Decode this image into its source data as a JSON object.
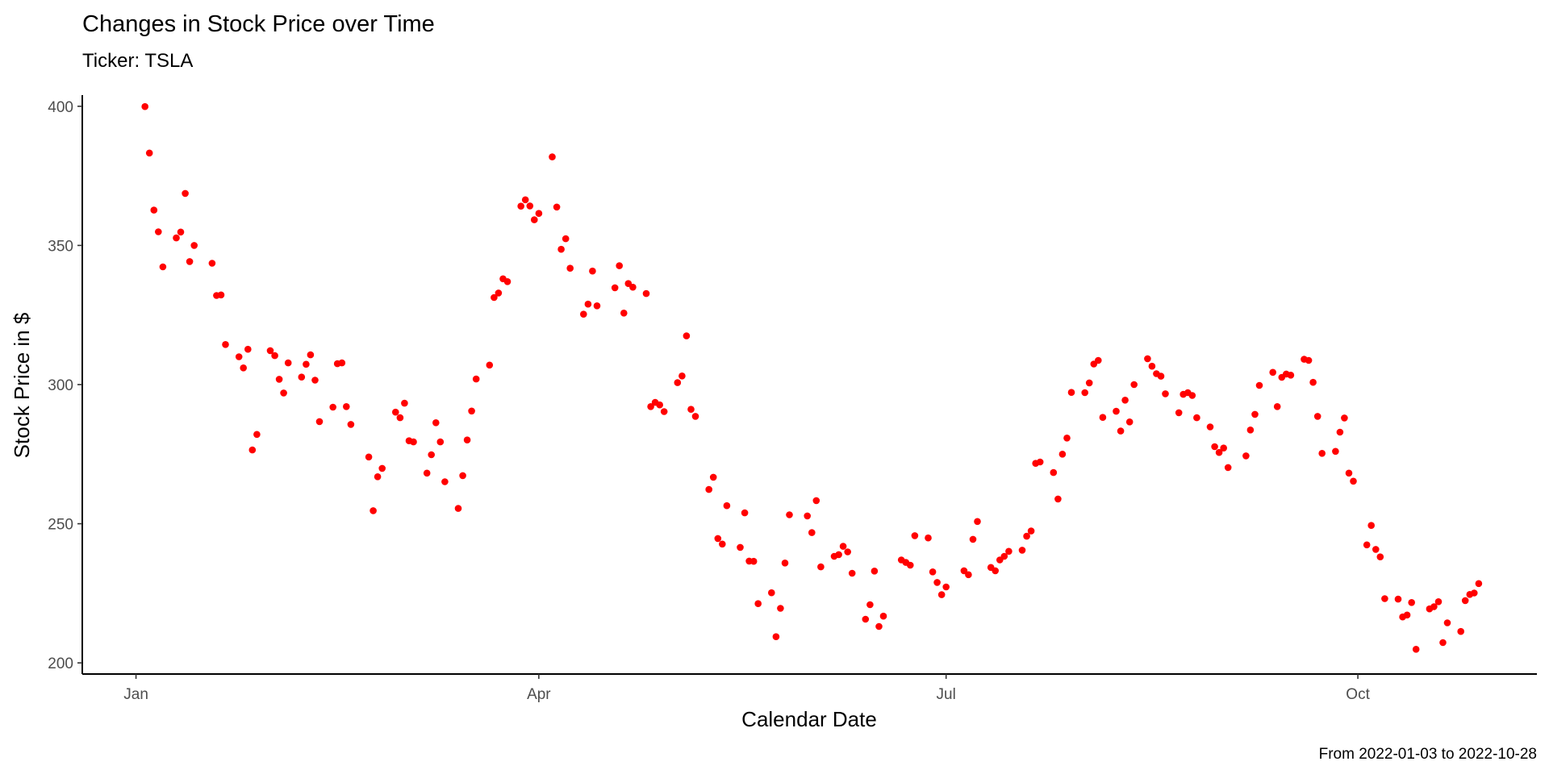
{
  "chart_data": {
    "type": "scatter",
    "title": "Changes in Stock Price over Time",
    "subtitle": "Ticker: TSLA",
    "xlabel": "Calendar Date",
    "ylabel": "Stock Price in $",
    "caption": "From 2022-01-03 to 2022-10-28",
    "x_ticks": [
      "Jan",
      "Apr",
      "Jul",
      "Oct"
    ],
    "x_tick_dates": [
      "2022-01-01",
      "2022-04-01",
      "2022-07-01",
      "2022-10-01"
    ],
    "xlim": [
      "2021-12-20",
      "2022-11-10"
    ],
    "y_ticks": [
      200,
      250,
      300,
      350,
      400
    ],
    "ylim": [
      196,
      404
    ],
    "grid": false,
    "point_color": "#ff0000",
    "points": [
      {
        "x": "2022-01-03",
        "y": 399.9
      },
      {
        "x": "2022-01-04",
        "y": 383.2
      },
      {
        "x": "2022-01-05",
        "y": 362.7
      },
      {
        "x": "2022-01-06",
        "y": 354.9
      },
      {
        "x": "2022-01-07",
        "y": 342.3
      },
      {
        "x": "2022-01-10",
        "y": 352.7
      },
      {
        "x": "2022-01-11",
        "y": 354.8
      },
      {
        "x": "2022-01-12",
        "y": 368.7
      },
      {
        "x": "2022-01-13",
        "y": 344.2
      },
      {
        "x": "2022-01-14",
        "y": 350.0
      },
      {
        "x": "2022-01-18",
        "y": 343.6
      },
      {
        "x": "2022-01-19",
        "y": 332.0
      },
      {
        "x": "2022-01-20",
        "y": 332.2
      },
      {
        "x": "2022-01-21",
        "y": 314.4
      },
      {
        "x": "2022-01-24",
        "y": 310.0
      },
      {
        "x": "2022-01-25",
        "y": 306.0
      },
      {
        "x": "2022-01-26",
        "y": 312.7
      },
      {
        "x": "2022-01-27",
        "y": 276.5
      },
      {
        "x": "2022-01-28",
        "y": 282.1
      },
      {
        "x": "2022-01-31",
        "y": 312.2
      },
      {
        "x": "2022-02-01",
        "y": 310.4
      },
      {
        "x": "2022-02-02",
        "y": 301.9
      },
      {
        "x": "2022-02-03",
        "y": 297.0
      },
      {
        "x": "2022-02-04",
        "y": 307.8
      },
      {
        "x": "2022-02-07",
        "y": 302.7
      },
      {
        "x": "2022-02-08",
        "y": 307.3
      },
      {
        "x": "2022-02-09",
        "y": 310.7
      },
      {
        "x": "2022-02-10",
        "y": 301.6
      },
      {
        "x": "2022-02-11",
        "y": 286.7
      },
      {
        "x": "2022-02-14",
        "y": 291.9
      },
      {
        "x": "2022-02-15",
        "y": 307.5
      },
      {
        "x": "2022-02-16",
        "y": 307.8
      },
      {
        "x": "2022-02-17",
        "y": 292.1
      },
      {
        "x": "2022-02-18",
        "y": 285.7
      },
      {
        "x": "2022-02-22",
        "y": 274.0
      },
      {
        "x": "2022-02-23",
        "y": 254.7
      },
      {
        "x": "2022-02-24",
        "y": 266.9
      },
      {
        "x": "2022-02-25",
        "y": 269.9
      },
      {
        "x": "2022-02-28",
        "y": 290.1
      },
      {
        "x": "2022-03-01",
        "y": 288.1
      },
      {
        "x": "2022-03-02",
        "y": 293.3
      },
      {
        "x": "2022-03-03",
        "y": 279.8
      },
      {
        "x": "2022-03-04",
        "y": 279.4
      },
      {
        "x": "2022-03-07",
        "y": 268.2
      },
      {
        "x": "2022-03-08",
        "y": 274.8
      },
      {
        "x": "2022-03-09",
        "y": 286.3
      },
      {
        "x": "2022-03-10",
        "y": 279.4
      },
      {
        "x": "2022-03-11",
        "y": 265.1
      },
      {
        "x": "2022-03-14",
        "y": 255.5
      },
      {
        "x": "2022-03-15",
        "y": 267.3
      },
      {
        "x": "2022-03-16",
        "y": 280.1
      },
      {
        "x": "2022-03-17",
        "y": 290.5
      },
      {
        "x": "2022-03-18",
        "y": 302.0
      },
      {
        "x": "2022-03-21",
        "y": 307.0
      },
      {
        "x": "2022-03-22",
        "y": 331.3
      },
      {
        "x": "2022-03-23",
        "y": 332.9
      },
      {
        "x": "2022-03-24",
        "y": 338.0
      },
      {
        "x": "2022-03-25",
        "y": 337.0
      },
      {
        "x": "2022-03-28",
        "y": 364.1
      },
      {
        "x": "2022-03-29",
        "y": 366.4
      },
      {
        "x": "2022-03-30",
        "y": 364.2
      },
      {
        "x": "2022-03-31",
        "y": 359.2
      },
      {
        "x": "2022-04-01",
        "y": 361.5
      },
      {
        "x": "2022-04-04",
        "y": 381.8
      },
      {
        "x": "2022-04-05",
        "y": 363.8
      },
      {
        "x": "2022-04-06",
        "y": 348.6
      },
      {
        "x": "2022-04-07",
        "y": 352.4
      },
      {
        "x": "2022-04-08",
        "y": 341.8
      },
      {
        "x": "2022-04-11",
        "y": 325.3
      },
      {
        "x": "2022-04-12",
        "y": 328.9
      },
      {
        "x": "2022-04-13",
        "y": 340.8
      },
      {
        "x": "2022-04-14",
        "y": 328.3
      },
      {
        "x": "2022-04-18",
        "y": 334.8
      },
      {
        "x": "2022-04-19",
        "y": 342.7
      },
      {
        "x": "2022-04-20",
        "y": 325.7
      },
      {
        "x": "2022-04-21",
        "y": 336.3
      },
      {
        "x": "2022-04-22",
        "y": 335.0
      },
      {
        "x": "2022-04-25",
        "y": 332.7
      },
      {
        "x": "2022-04-26",
        "y": 292.1
      },
      {
        "x": "2022-04-27",
        "y": 293.6
      },
      {
        "x": "2022-04-28",
        "y": 292.7
      },
      {
        "x": "2022-04-29",
        "y": 290.3
      },
      {
        "x": "2022-05-02",
        "y": 300.7
      },
      {
        "x": "2022-05-03",
        "y": 303.1
      },
      {
        "x": "2022-05-04",
        "y": 317.5
      },
      {
        "x": "2022-05-05",
        "y": 291.1
      },
      {
        "x": "2022-05-06",
        "y": 288.6
      },
      {
        "x": "2022-05-09",
        "y": 262.3
      },
      {
        "x": "2022-05-10",
        "y": 266.7
      },
      {
        "x": "2022-05-11",
        "y": 244.7
      },
      {
        "x": "2022-05-12",
        "y": 242.7
      },
      {
        "x": "2022-05-13",
        "y": 256.5
      },
      {
        "x": "2022-05-16",
        "y": 241.5
      },
      {
        "x": "2022-05-17",
        "y": 253.9
      },
      {
        "x": "2022-05-18",
        "y": 236.6
      },
      {
        "x": "2022-05-19",
        "y": 236.5
      },
      {
        "x": "2022-05-20",
        "y": 221.3
      },
      {
        "x": "2022-05-23",
        "y": 225.2
      },
      {
        "x": "2022-05-24",
        "y": 209.4
      },
      {
        "x": "2022-05-25",
        "y": 219.6
      },
      {
        "x": "2022-05-26",
        "y": 235.9
      },
      {
        "x": "2022-05-27",
        "y": 253.2
      },
      {
        "x": "2022-05-31",
        "y": 252.8
      },
      {
        "x": "2022-06-01",
        "y": 246.8
      },
      {
        "x": "2022-06-02",
        "y": 258.3
      },
      {
        "x": "2022-06-03",
        "y": 234.5
      },
      {
        "x": "2022-06-06",
        "y": 238.3
      },
      {
        "x": "2022-06-07",
        "y": 238.9
      },
      {
        "x": "2022-06-08",
        "y": 241.9
      },
      {
        "x": "2022-06-09",
        "y": 239.9
      },
      {
        "x": "2022-06-10",
        "y": 232.2
      },
      {
        "x": "2022-06-13",
        "y": 215.7
      },
      {
        "x": "2022-06-14",
        "y": 220.9
      },
      {
        "x": "2022-06-15",
        "y": 233.0
      },
      {
        "x": "2022-06-16",
        "y": 213.1
      },
      {
        "x": "2022-06-17",
        "y": 216.8
      },
      {
        "x": "2022-06-21",
        "y": 237.0
      },
      {
        "x": "2022-06-22",
        "y": 236.1
      },
      {
        "x": "2022-06-23",
        "y": 235.1
      },
      {
        "x": "2022-06-24",
        "y": 245.7
      },
      {
        "x": "2022-06-27",
        "y": 244.9
      },
      {
        "x": "2022-06-28",
        "y": 232.7
      },
      {
        "x": "2022-06-29",
        "y": 228.9
      },
      {
        "x": "2022-06-30",
        "y": 224.5
      },
      {
        "x": "2022-07-01",
        "y": 227.3
      },
      {
        "x": "2022-07-05",
        "y": 233.1
      },
      {
        "x": "2022-07-06",
        "y": 231.7
      },
      {
        "x": "2022-07-07",
        "y": 244.4
      },
      {
        "x": "2022-07-08",
        "y": 250.8
      },
      {
        "x": "2022-07-11",
        "y": 234.3
      },
      {
        "x": "2022-07-12",
        "y": 233.1
      },
      {
        "x": "2022-07-13",
        "y": 237.0
      },
      {
        "x": "2022-07-14",
        "y": 238.3
      },
      {
        "x": "2022-07-15",
        "y": 240.1
      },
      {
        "x": "2022-07-18",
        "y": 240.5
      },
      {
        "x": "2022-07-19",
        "y": 245.5
      },
      {
        "x": "2022-07-20",
        "y": 247.4
      },
      {
        "x": "2022-07-21",
        "y": 271.7
      },
      {
        "x": "2022-07-22",
        "y": 272.2
      },
      {
        "x": "2022-07-25",
        "y": 268.4
      },
      {
        "x": "2022-07-26",
        "y": 258.9
      },
      {
        "x": "2022-07-27",
        "y": 275.0
      },
      {
        "x": "2022-07-28",
        "y": 280.8
      },
      {
        "x": "2022-07-29",
        "y": 297.2
      },
      {
        "x": "2022-08-01",
        "y": 297.1
      },
      {
        "x": "2022-08-02",
        "y": 300.6
      },
      {
        "x": "2022-08-03",
        "y": 307.4
      },
      {
        "x": "2022-08-04",
        "y": 308.7
      },
      {
        "x": "2022-08-05",
        "y": 288.2
      },
      {
        "x": "2022-08-08",
        "y": 290.4
      },
      {
        "x": "2022-08-09",
        "y": 283.3
      },
      {
        "x": "2022-08-10",
        "y": 294.4
      },
      {
        "x": "2022-08-11",
        "y": 286.6
      },
      {
        "x": "2022-08-12",
        "y": 300.0
      },
      {
        "x": "2022-08-15",
        "y": 309.3
      },
      {
        "x": "2022-08-16",
        "y": 306.6
      },
      {
        "x": "2022-08-17",
        "y": 303.9
      },
      {
        "x": "2022-08-18",
        "y": 303.0
      },
      {
        "x": "2022-08-19",
        "y": 296.7
      },
      {
        "x": "2022-08-22",
        "y": 289.9
      },
      {
        "x": "2022-08-23",
        "y": 296.5
      },
      {
        "x": "2022-08-24",
        "y": 297.1
      },
      {
        "x": "2022-08-25",
        "y": 296.1
      },
      {
        "x": "2022-08-26",
        "y": 288.1
      },
      {
        "x": "2022-08-29",
        "y": 284.8
      },
      {
        "x": "2022-08-30",
        "y": 277.7
      },
      {
        "x": "2022-08-31",
        "y": 275.6
      },
      {
        "x": "2022-09-01",
        "y": 277.2
      },
      {
        "x": "2022-09-02",
        "y": 270.2
      },
      {
        "x": "2022-09-06",
        "y": 274.4
      },
      {
        "x": "2022-09-07",
        "y": 283.7
      },
      {
        "x": "2022-09-08",
        "y": 289.3
      },
      {
        "x": "2022-09-09",
        "y": 299.7
      },
      {
        "x": "2022-09-12",
        "y": 304.4
      },
      {
        "x": "2022-09-13",
        "y": 292.1
      },
      {
        "x": "2022-09-14",
        "y": 302.6
      },
      {
        "x": "2022-09-15",
        "y": 303.8
      },
      {
        "x": "2022-09-16",
        "y": 303.4
      },
      {
        "x": "2022-09-19",
        "y": 309.1
      },
      {
        "x": "2022-09-20",
        "y": 308.7
      },
      {
        "x": "2022-09-21",
        "y": 300.8
      },
      {
        "x": "2022-09-22",
        "y": 288.6
      },
      {
        "x": "2022-09-23",
        "y": 275.3
      },
      {
        "x": "2022-09-26",
        "y": 276.0
      },
      {
        "x": "2022-09-27",
        "y": 282.9
      },
      {
        "x": "2022-09-28",
        "y": 288.0
      },
      {
        "x": "2022-09-29",
        "y": 268.2
      },
      {
        "x": "2022-09-30",
        "y": 265.3
      },
      {
        "x": "2022-10-03",
        "y": 242.4
      },
      {
        "x": "2022-10-04",
        "y": 249.4
      },
      {
        "x": "2022-10-05",
        "y": 240.8
      },
      {
        "x": "2022-10-06",
        "y": 238.1
      },
      {
        "x": "2022-10-07",
        "y": 223.1
      },
      {
        "x": "2022-10-10",
        "y": 222.9
      },
      {
        "x": "2022-10-11",
        "y": 216.5
      },
      {
        "x": "2022-10-12",
        "y": 217.2
      },
      {
        "x": "2022-10-13",
        "y": 221.7
      },
      {
        "x": "2022-10-14",
        "y": 204.9
      },
      {
        "x": "2022-10-17",
        "y": 219.4
      },
      {
        "x": "2022-10-18",
        "y": 220.2
      },
      {
        "x": "2022-10-19",
        "y": 222.0
      },
      {
        "x": "2022-10-20",
        "y": 207.3
      },
      {
        "x": "2022-10-21",
        "y": 214.4
      },
      {
        "x": "2022-10-24",
        "y": 211.3
      },
      {
        "x": "2022-10-25",
        "y": 222.4
      },
      {
        "x": "2022-10-26",
        "y": 224.6
      },
      {
        "x": "2022-10-27",
        "y": 225.1
      },
      {
        "x": "2022-10-28",
        "y": 228.5
      }
    ]
  }
}
